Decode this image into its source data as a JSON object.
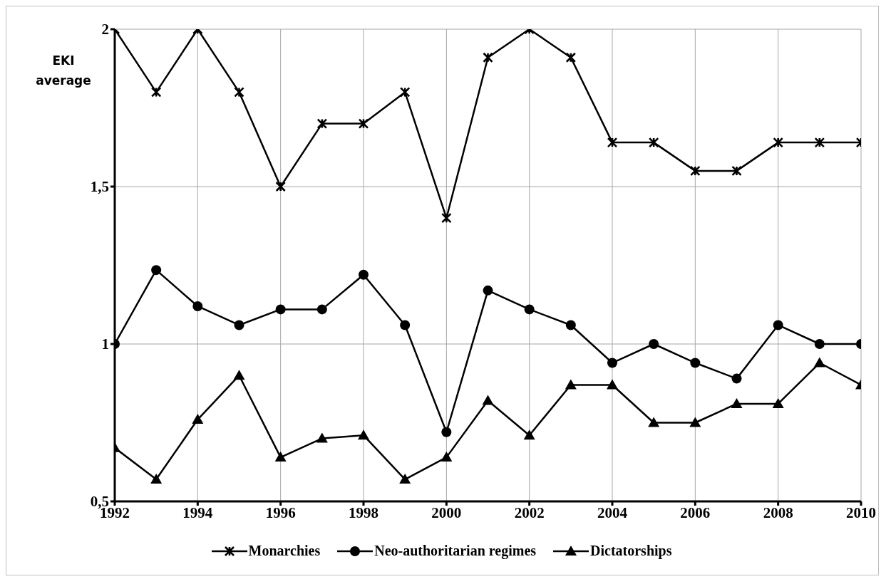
{
  "chart_data": {
    "type": "line",
    "ylabel": "EKI average",
    "x": [
      1992,
      1993,
      1994,
      1995,
      1996,
      1997,
      1998,
      1999,
      2000,
      2001,
      2002,
      2003,
      2004,
      2005,
      2006,
      2007,
      2008,
      2009,
      2010
    ],
    "series": [
      {
        "name": "Monarchies",
        "color": "#000000",
        "marker": "cross",
        "values": [
          2,
          1.8,
          2,
          1.8,
          1.5,
          1.7,
          1.7,
          1.8,
          1.4,
          1.91,
          2,
          1.91,
          1.64,
          1.64,
          1.55,
          1.55,
          1.64,
          1.64,
          1.64
        ]
      },
      {
        "name": "Neo-authoritarian regimes",
        "color": "#000000",
        "marker": "circle",
        "values": [
          1,
          1.235,
          1.12,
          1.06,
          1.11,
          1.11,
          1.22,
          1.06,
          0.72,
          1.17,
          1.11,
          1.06,
          0.94,
          1,
          0.94,
          0.89,
          1.06,
          1,
          1
        ]
      },
      {
        "name": "Dictatorships",
        "color": "#000000",
        "marker": "triangle",
        "values": [
          0.67,
          0.57,
          0.76,
          0.9,
          0.64,
          0.7,
          0.71,
          0.57,
          0.64,
          0.82,
          0.71,
          0.87,
          0.87,
          0.75,
          0.75,
          0.81,
          0.81,
          0.94,
          0.87
        ]
      }
    ],
    "xlim": [
      1992,
      2010
    ],
    "xticks": [
      1992,
      1994,
      1996,
      1998,
      2000,
      2002,
      2004,
      2006,
      2008,
      2010
    ],
    "ylim": [
      0.5,
      2
    ],
    "yticks": [
      {
        "value": 0.5,
        "label": "0,5"
      },
      {
        "value": 1,
        "label": "1"
      },
      {
        "value": 1.5,
        "label": "1,5"
      },
      {
        "value": 2,
        "label": "2"
      }
    ],
    "grid": true,
    "legend": "bottom",
    "line_style": "solid"
  }
}
